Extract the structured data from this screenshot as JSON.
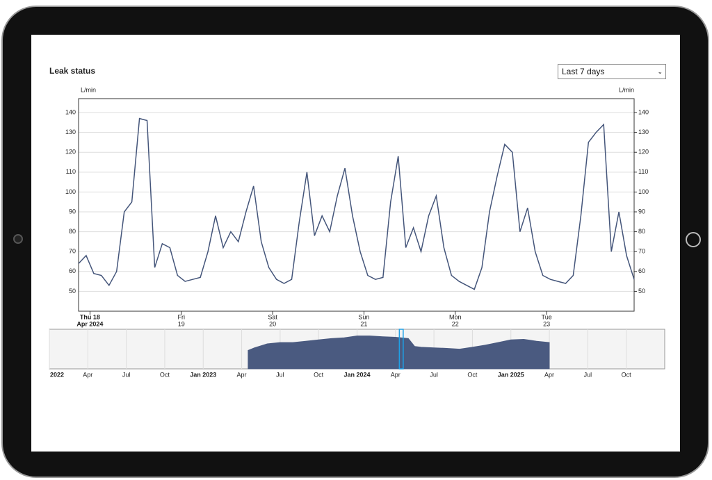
{
  "range_selector": {
    "selected": "Last 7 days"
  },
  "chart_data": [
    {
      "type": "line",
      "title": "Leak status",
      "y_label": "L/min",
      "y2_label": "L/min",
      "color": "#44557a",
      "x": [
        0,
        2,
        4,
        6,
        8,
        10,
        12,
        14,
        16,
        18,
        20,
        22,
        24,
        26,
        28,
        30,
        32,
        34,
        36,
        38,
        40,
        42,
        44,
        46,
        48,
        50,
        52,
        54,
        56,
        58,
        60,
        62,
        64,
        66,
        68,
        70,
        72,
        74,
        76,
        78,
        80,
        82,
        84,
        86,
        88,
        90,
        92,
        94,
        96,
        98,
        100,
        102,
        104,
        106,
        108,
        110,
        112,
        114,
        116,
        118,
        120,
        122,
        124,
        126,
        128,
        130,
        132,
        134,
        136,
        138,
        140,
        142,
        144,
        146
      ],
      "values": [
        64,
        68,
        59,
        58,
        53,
        60,
        90,
        95,
        137,
        136,
        62,
        74,
        72,
        58,
        55,
        56,
        57,
        70,
        88,
        72,
        80,
        75,
        90,
        103,
        75,
        62,
        56,
        54,
        56,
        85,
        110,
        78,
        88,
        80,
        98,
        112,
        88,
        70,
        58,
        56,
        57,
        95,
        118,
        72,
        82,
        70,
        88,
        98,
        72,
        58,
        55,
        53,
        51,
        62,
        90,
        108,
        124,
        120,
        80,
        92,
        70,
        58,
        56,
        55,
        54,
        58,
        88,
        125,
        130,
        134,
        70,
        90,
        68,
        56
      ],
      "xlim": [
        0,
        146
      ],
      "xticks": [
        {
          "value": 3,
          "label": "Thu 18"
        },
        {
          "value": 27,
          "label": "Fri"
        },
        {
          "value": 51,
          "label": "Sat"
        },
        {
          "value": 75,
          "label": "Sun"
        },
        {
          "value": 99,
          "label": "Mon"
        },
        {
          "value": 123,
          "label": "Tue"
        }
      ],
      "xtick_sublabels": [
        "Apr 2024",
        "19",
        "20",
        "21",
        "22",
        "23"
      ],
      "ylim": [
        40,
        147
      ],
      "yticks": [
        50,
        60,
        70,
        80,
        90,
        100,
        110,
        120,
        130,
        140
      ],
      "y2lim": [
        40,
        147
      ],
      "y2ticks": [
        50,
        60,
        70,
        80,
        90,
        100,
        110,
        120,
        130,
        140
      ],
      "grid": true
    },
    {
      "type": "area",
      "color": "#4a5a80",
      "x": [
        15.5,
        16,
        17,
        18,
        19,
        20,
        21,
        22,
        23,
        24,
        25,
        26,
        27,
        28,
        28.5,
        29,
        30,
        31,
        32,
        33,
        34,
        35,
        36,
        37,
        38,
        39
      ],
      "values": [
        70,
        80,
        95,
        100,
        100,
        105,
        110,
        115,
        118,
        125,
        125,
        122,
        120,
        115,
        85,
        82,
        80,
        78,
        75,
        82,
        90,
        100,
        110,
        112,
        105,
        100
      ],
      "xlim": [
        0,
        48
      ],
      "ylim": [
        0,
        150
      ],
      "xticks": [
        {
          "value": 0,
          "label": "2022"
        },
        {
          "value": 3,
          "label": "Apr"
        },
        {
          "value": 6,
          "label": "Jul"
        },
        {
          "value": 9,
          "label": "Oct"
        },
        {
          "value": 12,
          "label": "Jan 2023"
        },
        {
          "value": 15,
          "label": "Apr"
        },
        {
          "value": 18,
          "label": "Jul"
        },
        {
          "value": 21,
          "label": "Oct"
        },
        {
          "value": 24,
          "label": "Jan 2024"
        },
        {
          "value": 27,
          "label": "Apr"
        },
        {
          "value": 30,
          "label": "Jul"
        },
        {
          "value": 33,
          "label": "Oct"
        },
        {
          "value": 36,
          "label": "Jan 2025"
        },
        {
          "value": 39,
          "label": "Apr"
        },
        {
          "value": 42,
          "label": "Jul"
        },
        {
          "value": 45,
          "label": "Oct"
        }
      ],
      "x_selection": [
        27.3,
        27.6
      ],
      "selection_color": "#1ea0e6",
      "grid": true
    }
  ]
}
